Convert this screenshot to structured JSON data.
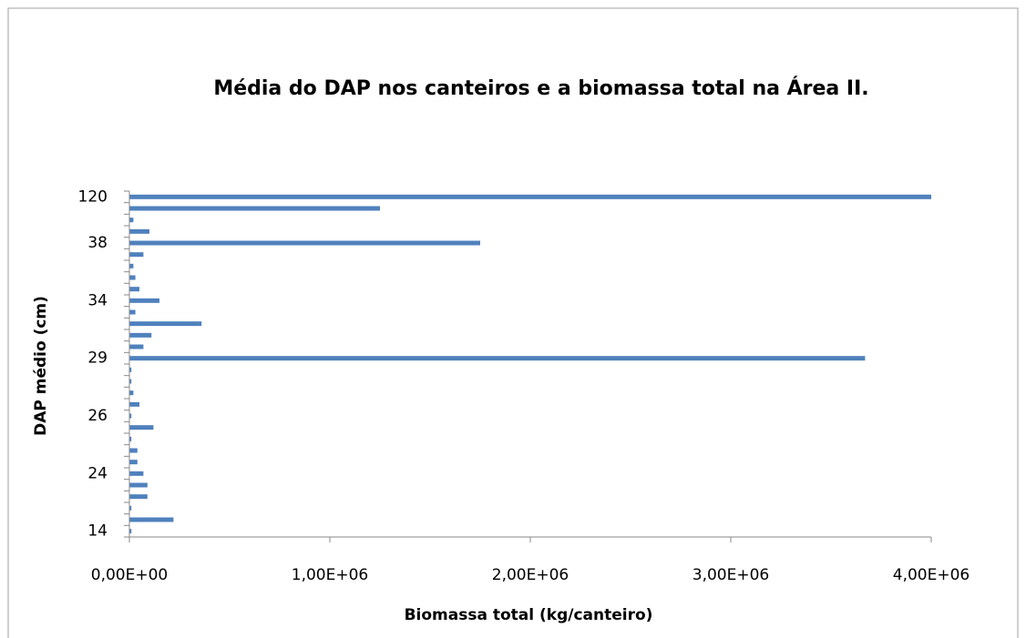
{
  "chart_data": {
    "type": "barh",
    "title": "Média do DAP nos canteiros e a biomassa total na Área II.",
    "x_label": "Biomassa  total (kg/canteiro)",
    "y_label": "DAP médio  (cm)",
    "categories": [
      "14",
      null,
      null,
      null,
      null,
      "24",
      null,
      null,
      null,
      null,
      "26",
      null,
      null,
      null,
      null,
      "29",
      null,
      null,
      null,
      null,
      "34",
      null,
      null,
      null,
      null,
      "38",
      null,
      null,
      null,
      "120"
    ],
    "values": [
      10000,
      220000,
      10000,
      90000,
      90000,
      70000,
      40000,
      40000,
      10000,
      120000,
      10000,
      50000,
      20000,
      10000,
      10000,
      3670000,
      70000,
      110000,
      360000,
      30000,
      150000,
      50000,
      30000,
      20000,
      70000,
      1750000,
      100000,
      20000,
      1250000,
      4000000
    ],
    "color": "#4f81bd",
    "xlim": [
      0,
      4000000
    ],
    "xticks": [
      {
        "value": 0,
        "label": "0,00E+00"
      },
      {
        "value": 1000000,
        "label": "1,00E+06"
      },
      {
        "value": 2000000,
        "label": "2,00E+06"
      },
      {
        "value": 3000000,
        "label": "3,00E+06"
      },
      {
        "value": 4000000,
        "label": "4,00E+06"
      }
    ],
    "grid": false
  }
}
